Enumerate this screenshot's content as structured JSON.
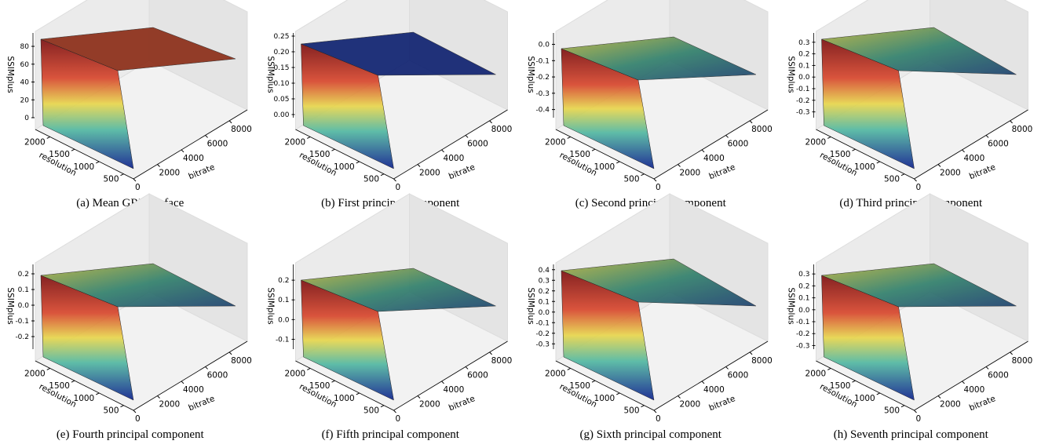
{
  "panels": [
    {
      "caption": "(a) Mean GRD surface",
      "zlabel": "SSIMplus",
      "xlabel": "bitrate",
      "ylabel": "resolution",
      "zlim": [
        0,
        95
      ],
      "zticks": [
        {
          "value": 0,
          "label": "0"
        },
        {
          "value": 20,
          "label": "20"
        },
        {
          "value": 40,
          "label": "40"
        },
        {
          "value": 60,
          "label": "60"
        },
        {
          "value": 80,
          "label": "80"
        }
      ],
      "ylim": [
        2300,
        300
      ],
      "yticks": [
        2000,
        1500,
        1000,
        500
      ],
      "xlim": [
        0,
        9500
      ],
      "xticks": [
        0,
        2000,
        4000,
        6000,
        8000
      ]
    },
    {
      "caption": "(b) First principal component",
      "zlabel": "SSIMplus",
      "xlabel": "bitrate",
      "ylabel": "resolution",
      "zlim": [
        -0.01,
        0.26
      ],
      "zticks": [
        {
          "value": 0,
          "label": "0.00"
        },
        {
          "value": 0.05,
          "label": "0.05"
        },
        {
          "value": 0.1,
          "label": "0.10"
        },
        {
          "value": 0.15,
          "label": "0.15"
        },
        {
          "value": 0.2,
          "label": "0.20"
        },
        {
          "value": 0.25,
          "label": "0.25"
        }
      ],
      "ylim": [
        2300,
        300
      ],
      "yticks": [
        2000,
        1500,
        1000,
        500
      ],
      "xlim": [
        0,
        9500
      ],
      "xticks": [
        0,
        2000,
        4000,
        6000,
        8000
      ]
    },
    {
      "caption": "(c) Second principal component",
      "zlabel": "SSIMplus",
      "xlabel": "bitrate",
      "ylabel": "resolution",
      "zlim": [
        -0.45,
        0.07
      ],
      "zticks": [
        {
          "value": 0,
          "label": "0.0"
        },
        {
          "value": -0.1,
          "label": "-0.1"
        },
        {
          "value": -0.2,
          "label": "-0.2"
        },
        {
          "value": -0.3,
          "label": "-0.3"
        },
        {
          "value": -0.4,
          "label": "-0.4"
        }
      ],
      "ylim": [
        2300,
        300
      ],
      "yticks": [
        2000,
        1500,
        1000,
        500
      ],
      "xlim": [
        0,
        9500
      ],
      "xticks": [
        0,
        2000,
        4000,
        6000,
        8000
      ]
    },
    {
      "caption": "(d) Third principal component",
      "zlabel": "SSIMplus",
      "xlabel": "bitrate",
      "ylabel": "resolution",
      "zlim": [
        -0.35,
        0.38
      ],
      "zticks": [
        {
          "value": 0.3,
          "label": "0.3"
        },
        {
          "value": 0.2,
          "label": "0.2"
        },
        {
          "value": 0.1,
          "label": "0.1"
        },
        {
          "value": 0,
          "label": "0.0"
        },
        {
          "value": -0.1,
          "label": "-0.1"
        },
        {
          "value": -0.2,
          "label": "-0.2"
        },
        {
          "value": -0.3,
          "label": "-0.3"
        }
      ],
      "ylim": [
        2300,
        300
      ],
      "yticks": [
        2000,
        1500,
        1000,
        500
      ],
      "xlim": [
        0,
        9500
      ],
      "xticks": [
        0,
        2000,
        4000,
        6000,
        8000
      ]
    },
    {
      "caption": "(e) Fourth principal component",
      "zlabel": "SSIMplus",
      "xlabel": "bitrate",
      "ylabel": "resolution",
      "zlim": [
        -0.28,
        0.26
      ],
      "zticks": [
        {
          "value": 0.2,
          "label": "0.2"
        },
        {
          "value": 0.1,
          "label": "0.1"
        },
        {
          "value": 0,
          "label": "0.0"
        },
        {
          "value": -0.1,
          "label": "-0.1"
        },
        {
          "value": -0.2,
          "label": "-0.2"
        }
      ],
      "ylim": [
        2300,
        300
      ],
      "yticks": [
        2000,
        1500,
        1000,
        500
      ],
      "xlim": [
        0,
        9500
      ],
      "xticks": [
        0,
        2000,
        4000,
        6000,
        8000
      ]
    },
    {
      "caption": "(f) Fifth principal component",
      "zlabel": "SSIMplus",
      "xlabel": "bitrate",
      "ylabel": "resolution",
      "zlim": [
        -0.15,
        0.28
      ],
      "zticks": [
        {
          "value": 0.2,
          "label": "0.2"
        },
        {
          "value": 0.1,
          "label": "0.1"
        },
        {
          "value": 0,
          "label": "0.0"
        },
        {
          "value": -0.1,
          "label": "-0.1"
        }
      ],
      "ylim": [
        2300,
        300
      ],
      "yticks": [
        2000,
        1500,
        1000,
        500
      ],
      "xlim": [
        0,
        9500
      ],
      "xticks": [
        0,
        2000,
        4000,
        6000,
        8000
      ]
    },
    {
      "caption": "(g) Sixth principal component",
      "zlabel": "SSIMplus",
      "xlabel": "bitrate",
      "ylabel": "resolution",
      "zlim": [
        -0.35,
        0.45
      ],
      "zticks": [
        {
          "value": 0.4,
          "label": "0.4"
        },
        {
          "value": 0.3,
          "label": "0.3"
        },
        {
          "value": 0.2,
          "label": "0.2"
        },
        {
          "value": 0.1,
          "label": "0.1"
        },
        {
          "value": 0,
          "label": "0.0"
        },
        {
          "value": -0.1,
          "label": "-0.1"
        },
        {
          "value": -0.2,
          "label": "-0.2"
        },
        {
          "value": -0.3,
          "label": "-0.3"
        }
      ],
      "ylim": [
        2300,
        300
      ],
      "yticks": [
        2000,
        1500,
        1000,
        500
      ],
      "xlim": [
        0,
        9500
      ],
      "xticks": [
        0,
        2000,
        4000,
        6000,
        8000
      ]
    },
    {
      "caption": "(h) Seventh principal component",
      "zlabel": "SSIMplus",
      "xlabel": "bitrate",
      "ylabel": "resolution",
      "zlim": [
        -0.33,
        0.38
      ],
      "zticks": [
        {
          "value": 0.3,
          "label": "0.3"
        },
        {
          "value": 0.2,
          "label": "0.2"
        },
        {
          "value": 0.1,
          "label": "0.1"
        },
        {
          "value": 0,
          "label": "0.0"
        },
        {
          "value": -0.1,
          "label": "-0.1"
        },
        {
          "value": -0.2,
          "label": "-0.2"
        },
        {
          "value": -0.3,
          "label": "-0.3"
        }
      ],
      "ylim": [
        2300,
        300
      ],
      "yticks": [
        2000,
        1500,
        1000,
        500
      ],
      "xlim": [
        0,
        9500
      ],
      "xticks": [
        0,
        2000,
        4000,
        6000,
        8000
      ]
    }
  ]
}
